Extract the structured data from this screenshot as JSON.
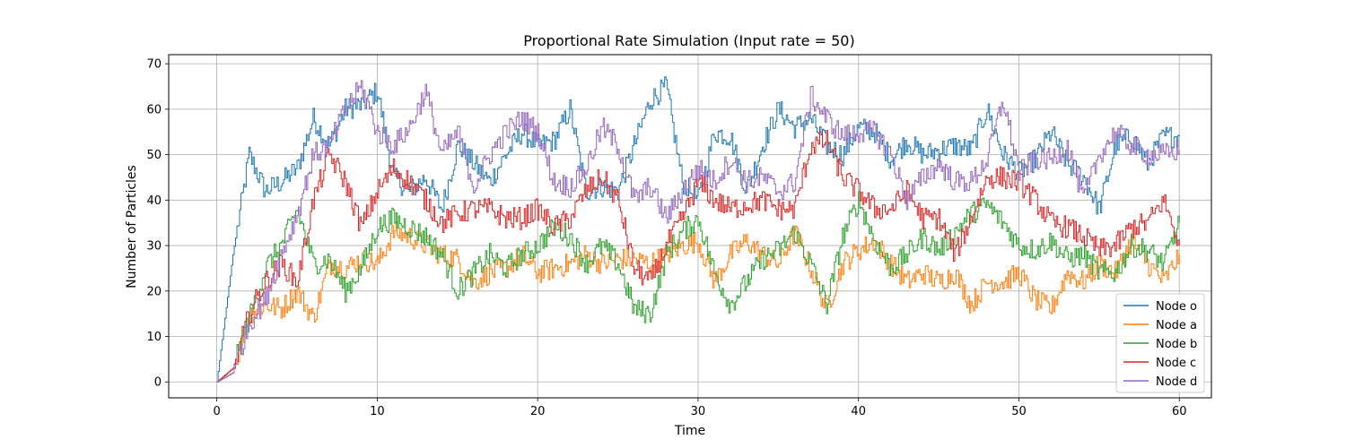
{
  "chart_data": {
    "type": "line",
    "title": "Proportional Rate Simulation (Input rate = 50)",
    "xlabel": "Time",
    "ylabel": "Number of Particles",
    "xlim": [
      -3,
      62
    ],
    "ylim": [
      -3.5,
      72
    ],
    "xticks": [
      0,
      10,
      20,
      30,
      40,
      50,
      60
    ],
    "yticks": [
      0,
      10,
      20,
      30,
      40,
      50,
      60,
      70
    ],
    "grid": true,
    "legend_position": "lower-right",
    "x": [
      0,
      1,
      2,
      3,
      4,
      5,
      6,
      7,
      8,
      9,
      10,
      11,
      12,
      13,
      14,
      15,
      16,
      17,
      18,
      19,
      20,
      21,
      22,
      23,
      24,
      25,
      26,
      27,
      28,
      29,
      30,
      31,
      32,
      33,
      34,
      35,
      36,
      37,
      38,
      39,
      40,
      41,
      42,
      43,
      44,
      45,
      46,
      47,
      48,
      49,
      50,
      51,
      52,
      53,
      54,
      55,
      56,
      57,
      58,
      59,
      60
    ],
    "series": [
      {
        "name": "Node o",
        "color": "#1f77b4",
        "values": [
          0,
          28,
          50,
          42,
          44,
          47,
          58,
          52,
          60,
          61,
          64,
          45,
          42,
          45,
          38,
          52,
          48,
          44,
          50,
          55,
          52,
          53,
          60,
          42,
          43,
          42,
          52,
          62,
          65,
          44,
          40,
          55,
          54,
          42,
          52,
          60,
          56,
          58,
          52,
          50,
          56,
          55,
          49,
          53,
          50,
          51,
          52,
          51,
          60,
          50,
          46,
          49,
          55,
          48,
          45,
          38,
          52,
          54,
          48,
          54,
          54
        ]
      },
      {
        "name": "Node a",
        "color": "#ff7f0e",
        "values": [
          0,
          2,
          15,
          17,
          16,
          20,
          14,
          26,
          25,
          27,
          26,
          33,
          32,
          30,
          28,
          27,
          22,
          24,
          25,
          28,
          24,
          25,
          26,
          28,
          26,
          27,
          27,
          26,
          28,
          30,
          31,
          22,
          28,
          31,
          28,
          26,
          33,
          25,
          16,
          26,
          29,
          31,
          26,
          22,
          24,
          22,
          24,
          17,
          22,
          22,
          24,
          18,
          16,
          24,
          22,
          26,
          24,
          31,
          26,
          22,
          28
        ]
      },
      {
        "name": "Node b",
        "color": "#2ca02c",
        "values": [
          0,
          3,
          14,
          25,
          30,
          38,
          26,
          27,
          20,
          25,
          34,
          36,
          34,
          32,
          28,
          20,
          24,
          28,
          25,
          28,
          30,
          34,
          32,
          26,
          30,
          26,
          16,
          15,
          28,
          33,
          36,
          24,
          17,
          22,
          27,
          29,
          33,
          26,
          17,
          32,
          40,
          31,
          25,
          28,
          32,
          29,
          33,
          37,
          39,
          35,
          30,
          29,
          31,
          27,
          28,
          24,
          24,
          30,
          29,
          26,
          35
        ]
      },
      {
        "name": "Node c",
        "color": "#d62728",
        "values": [
          0,
          3,
          15,
          22,
          26,
          22,
          40,
          50,
          44,
          34,
          42,
          47,
          44,
          40,
          35,
          37,
          38,
          38,
          36,
          36,
          38,
          34,
          36,
          42,
          45,
          40,
          25,
          22,
          30,
          36,
          44,
          40,
          38,
          39,
          40,
          38,
          38,
          52,
          53,
          45,
          42,
          38,
          38,
          42,
          36,
          36,
          28,
          36,
          45,
          45,
          44,
          40,
          35,
          34,
          32,
          29,
          30,
          34,
          35,
          40,
          30
        ]
      },
      {
        "name": "Node d",
        "color": "#9467bd",
        "values": [
          0,
          2,
          13,
          18,
          28,
          37,
          50,
          52,
          60,
          65,
          55,
          52,
          56,
          64,
          50,
          55,
          43,
          50,
          55,
          58,
          55,
          44,
          43,
          47,
          56,
          52,
          40,
          43,
          36,
          42,
          47,
          44,
          49,
          44,
          45,
          42,
          44,
          63,
          58,
          54,
          55,
          55,
          50,
          40,
          45,
          48,
          44,
          44,
          49,
          62,
          46,
          49,
          49,
          52,
          40,
          50,
          55,
          52,
          50,
          50,
          51
        ]
      }
    ]
  }
}
